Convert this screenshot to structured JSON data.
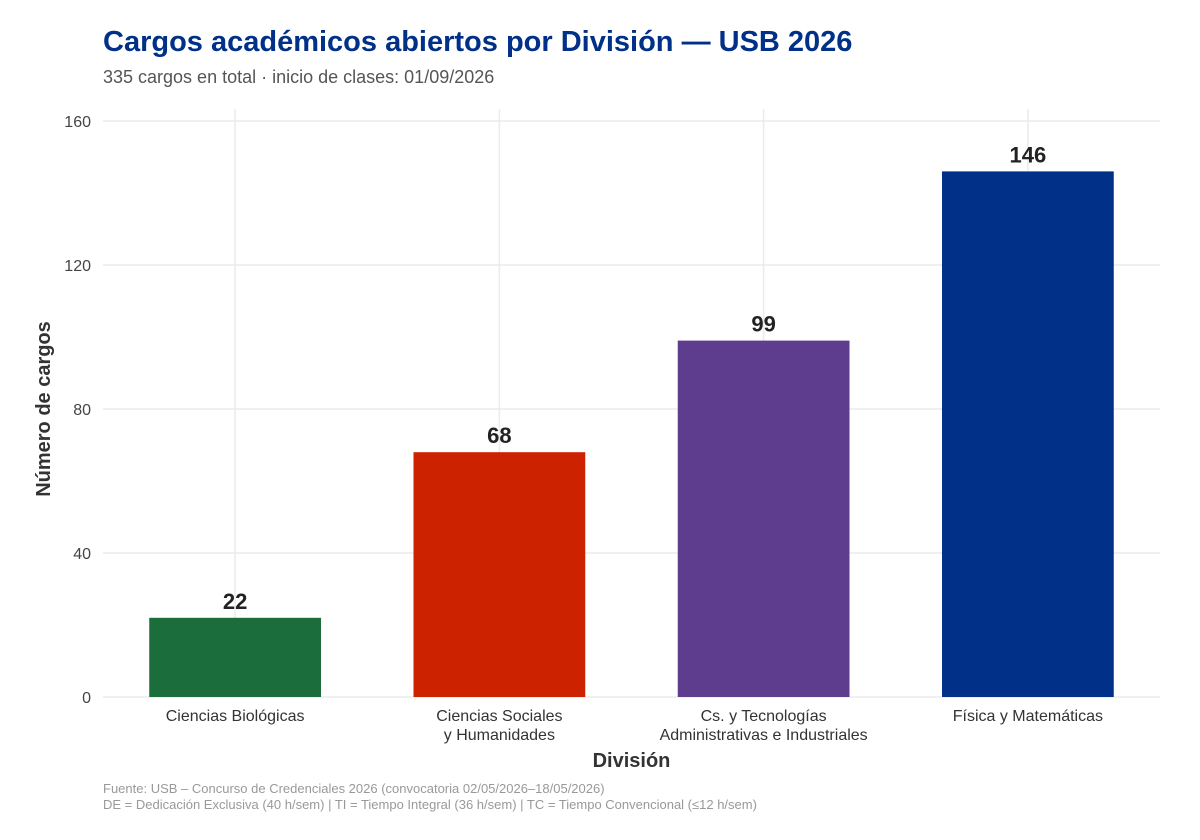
{
  "chart_data": {
    "type": "bar",
    "title": "Cargos académicos abiertos por División — USB 2026",
    "subtitle": "335 cargos en total · inicio de clases: 01/09/2026",
    "xlabel": "División",
    "ylabel": "Número de cargos",
    "categories": [
      [
        "Ciencias Biológicas"
      ],
      [
        "Ciencias Sociales",
        "y Humanidades"
      ],
      [
        "Cs. y Tecnologías",
        "Administrativas e Industriales"
      ],
      [
        "Física y Matemáticas"
      ]
    ],
    "values": [
      22,
      68,
      99,
      146
    ],
    "data_labels": [
      "22",
      "68",
      "99",
      "146"
    ],
    "colors": [
      "#1b6e3c",
      "#cc2200",
      "#5e3d8f",
      "#003087"
    ],
    "ylim": [
      0,
      160
    ],
    "yticks": [
      0,
      40,
      80,
      120,
      160
    ],
    "grid": true,
    "legend": "none",
    "caption": [
      "Fuente: USB – Concurso de Credenciales 2026 (convocatoria 02/05/2026–18/05/2026)",
      "DE = Dedicación Exclusiva (40 h/sem) | TI = Tiempo Integral (36 h/sem) | TC = Tiempo Convencional (≤12 h/sem)"
    ]
  }
}
